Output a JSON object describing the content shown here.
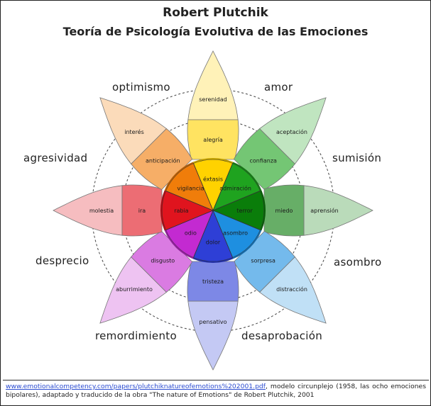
{
  "title": "Robert Plutchik",
  "subtitle": "Teoría de Psicología Evolutiva de las Emociones",
  "petals": [
    {
      "direction": "top",
      "color": "#ffd200",
      "inner": "éxtasis",
      "middle": "alegría",
      "outer": "serenidad"
    },
    {
      "direction": "top-right",
      "color": "#1fa31f",
      "inner": "admiración",
      "middle": "confianza",
      "outer": "aceptación"
    },
    {
      "direction": "right",
      "color": "#0a7d0a",
      "inner": "terror",
      "middle": "miedo",
      "outer": "aprensión"
    },
    {
      "direction": "bottom-right",
      "color": "#1e8fe0",
      "inner": "asombro",
      "middle": "sorpresa",
      "outer": "distracción"
    },
    {
      "direction": "bottom",
      "color": "#2e3fd6",
      "inner": "dolor",
      "middle": "tristeza",
      "outer": "pensativo"
    },
    {
      "direction": "bottom-left",
      "color": "#c32ad1",
      "inner": "odio",
      "middle": "disgusto",
      "outer": "aburrimiento"
    },
    {
      "direction": "left",
      "color": "#e0141e",
      "inner": "rabia",
      "middle": "ira",
      "outer": "molestia"
    },
    {
      "direction": "top-left",
      "color": "#f07d0a",
      "inner": "vigilancia",
      "middle": "anticipación",
      "outer": "interés"
    }
  ],
  "dyads": {
    "optimism": "optimismo",
    "love": "amor",
    "submission": "sumisión",
    "awe": "asombro",
    "disapproval": "desaprobación",
    "remorse": "remordimiento",
    "contempt": "desprecio",
    "aggressiveness": "agresividad"
  },
  "caption": {
    "link": "www.emotionalcompetency.com/papers/plutchiknatureofemotions%202001.pdf",
    "text": ", modelo circunplejo (1958, las ocho emociones bipolares), adaptado y traducido de la obra \"The nature of Emotions\" de Robert Plutchik, 2001"
  }
}
